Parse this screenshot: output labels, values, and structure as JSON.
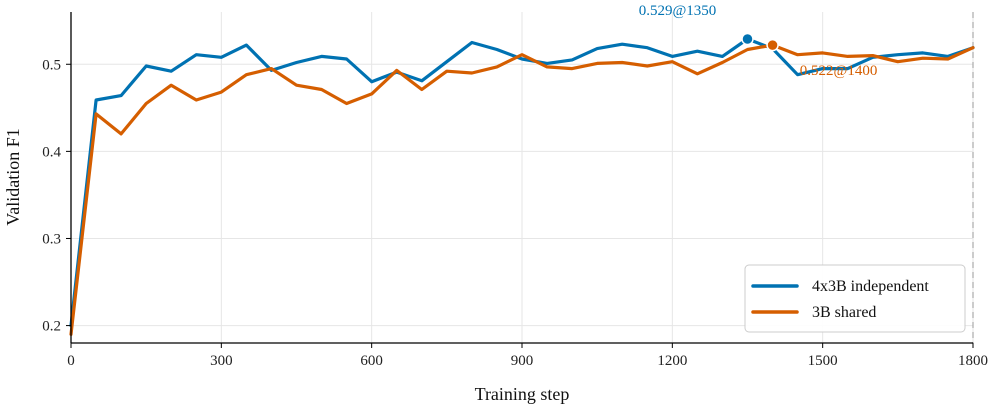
{
  "chart_data": {
    "type": "line",
    "xlabel": "Training step",
    "ylabel": "Validation F1",
    "xlim": [
      0,
      1800
    ],
    "ylim": [
      0.18,
      0.56
    ],
    "xticks": [
      0,
      300,
      600,
      900,
      1200,
      1500,
      1800
    ],
    "yticks": [
      0.2,
      0.3,
      0.4,
      0.5
    ],
    "xtick_labels": [
      "0",
      "300",
      "600",
      "900",
      "1200",
      "1500",
      "1800"
    ],
    "ytick_labels": [
      "0.2",
      "0.3",
      "0.4",
      "0.5"
    ],
    "grid": true,
    "legend_position": "bottom-right",
    "reference_line_x": 1800,
    "series": [
      {
        "name": "4x3B independent",
        "color": "#0072b2",
        "x": [
          0,
          50,
          100,
          150,
          200,
          250,
          300,
          350,
          400,
          450,
          500,
          550,
          600,
          650,
          700,
          750,
          800,
          850,
          900,
          950,
          1000,
          1050,
          1100,
          1150,
          1200,
          1250,
          1300,
          1350,
          1400,
          1450,
          1500,
          1550,
          1600,
          1650,
          1700,
          1750,
          1800
        ],
        "y": [
          0.2,
          0.459,
          0.464,
          0.498,
          0.492,
          0.511,
          0.508,
          0.522,
          0.493,
          0.502,
          0.509,
          0.506,
          0.48,
          0.491,
          0.481,
          0.503,
          0.525,
          0.517,
          0.506,
          0.501,
          0.505,
          0.518,
          0.523,
          0.519,
          0.509,
          0.515,
          0.509,
          0.529,
          0.518,
          0.488,
          0.495,
          0.495,
          0.508,
          0.511,
          0.513,
          0.509,
          0.519
        ]
      },
      {
        "name": "3B shared",
        "color": "#d55e00",
        "x": [
          0,
          50,
          100,
          150,
          200,
          250,
          300,
          350,
          400,
          450,
          500,
          550,
          600,
          650,
          700,
          750,
          800,
          850,
          900,
          950,
          1000,
          1050,
          1100,
          1150,
          1200,
          1250,
          1300,
          1350,
          1400,
          1450,
          1500,
          1550,
          1600,
          1650,
          1700,
          1750,
          1800
        ],
        "y": [
          0.19,
          0.443,
          0.42,
          0.455,
          0.476,
          0.459,
          0.468,
          0.488,
          0.495,
          0.476,
          0.471,
          0.455,
          0.466,
          0.493,
          0.471,
          0.492,
          0.49,
          0.497,
          0.511,
          0.497,
          0.495,
          0.501,
          0.502,
          0.498,
          0.503,
          0.489,
          0.502,
          0.517,
          0.522,
          0.511,
          0.513,
          0.509,
          0.51,
          0.503,
          0.507,
          0.506,
          0.519
        ]
      }
    ],
    "annotations": [
      {
        "series": "4x3B independent",
        "x": 1350,
        "y": 0.529,
        "text": "0.529@1350",
        "color": "#0072b2",
        "position": "above"
      },
      {
        "series": "3B shared",
        "x": 1400,
        "y": 0.522,
        "text": "0.522@1400",
        "color": "#d55e00",
        "position": "below"
      }
    ]
  }
}
